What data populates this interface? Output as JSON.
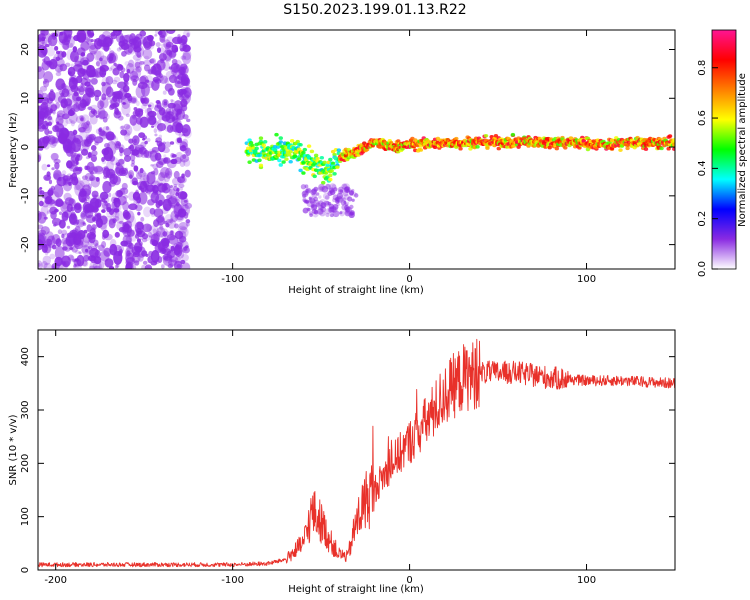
{
  "title": "S150.2023.199.01.13.R22",
  "colors": {
    "snr_line": "#e8312a",
    "frame": "#000000"
  },
  "chart_data": [
    {
      "type": "heatmap",
      "xlabel": "Height of straight line (km)",
      "ylabel": "Frequency (Hz)",
      "xlim": [
        -210,
        150
      ],
      "ylim": [
        -25,
        24
      ],
      "xticks": [
        -200,
        -100,
        0,
        100
      ],
      "yticks": [
        -20,
        -10,
        0,
        10,
        20
      ],
      "colorbar": {
        "label": "Normalized spectral amplitude",
        "range": [
          0,
          0.95
        ],
        "ticks": [
          "0.0",
          "0.2",
          "0.4",
          "0.6",
          "0.8"
        ],
        "tick_values": [
          0,
          0.2,
          0.4,
          0.6,
          0.8
        ],
        "colormap": [
          "#ffffff",
          "#8a2be2",
          "#0000ff",
          "#00ffff",
          "#00ff00",
          "#ffff00",
          "#ff7f00",
          "#ff0000",
          "#ff1493"
        ]
      },
      "ridge": {
        "x": [
          -90,
          -75,
          -65,
          -55,
          -48,
          -44,
          -40,
          -30,
          -20,
          -10,
          0,
          20,
          40,
          60,
          80,
          90,
          100,
          110,
          120,
          150
        ],
        "y": [
          -0.5,
          -1.5,
          -1,
          -3,
          -5,
          -4.5,
          -2,
          -1,
          1,
          0,
          0.5,
          0.8,
          1,
          1,
          1,
          1,
          0.8,
          0.5,
          0.8,
          0.8
        ]
      }
    },
    {
      "type": "line",
      "xlabel": "Height of straight line (km)",
      "ylabel": "SNR (10 * v/v)",
      "xlim": [
        -210,
        150
      ],
      "ylim": [
        0,
        450
      ],
      "xticks": [
        -200,
        -100,
        0,
        100
      ],
      "yticks": [
        0,
        100,
        200,
        300,
        400
      ],
      "series": [
        {
          "x": [
            -210,
            -150,
            -100,
            -80,
            -70,
            -60,
            -55,
            -50,
            -45,
            -40,
            -35,
            -30,
            -25,
            -20,
            -10,
            0,
            10,
            20,
            30,
            40,
            60,
            80,
            100,
            120,
            150
          ],
          "y": [
            10,
            10,
            10,
            12,
            20,
            50,
            110,
            90,
            55,
            30,
            25,
            90,
            130,
            150,
            200,
            240,
            280,
            330,
            360,
            370,
            370,
            360,
            355,
            355,
            350
          ]
        }
      ]
    }
  ]
}
